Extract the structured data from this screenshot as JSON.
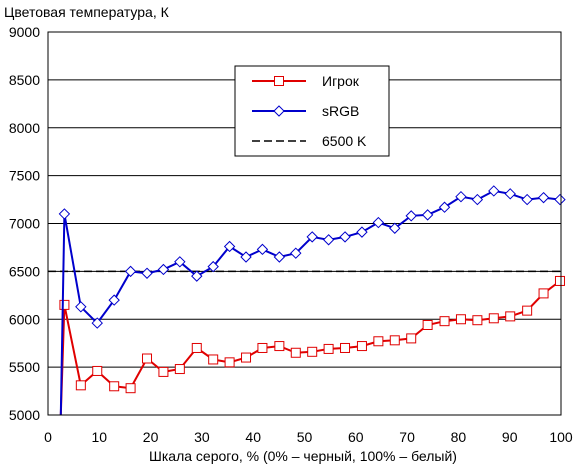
{
  "chart_data": {
    "type": "line",
    "title": "",
    "ylabel": "Цветовая температура, К",
    "xlabel": "Шкала серого, % (0% – черный, 100% – белый)",
    "xlim": [
      0,
      100
    ],
    "ylim": [
      5000,
      9000
    ],
    "xticks": [
      0,
      10,
      20,
      30,
      40,
      50,
      60,
      70,
      80,
      90,
      100
    ],
    "yticks": [
      5000,
      5500,
      6000,
      6500,
      7000,
      7500,
      8000,
      8500,
      9000
    ],
    "grid": "horizontal",
    "legend_position": "top-center",
    "series": [
      {
        "name": "Игрок",
        "color": "#e00000",
        "marker": "square",
        "points": [
          [
            2.5,
            5000
          ],
          [
            3.2,
            6150
          ],
          [
            6.4,
            5310
          ],
          [
            9.6,
            5460
          ],
          [
            12.9,
            5300
          ],
          [
            16.1,
            5280
          ],
          [
            19.3,
            5590
          ],
          [
            22.5,
            5450
          ],
          [
            25.7,
            5480
          ],
          [
            29,
            5700
          ],
          [
            32.2,
            5580
          ],
          [
            35.4,
            5550
          ],
          [
            38.6,
            5600
          ],
          [
            41.8,
            5700
          ],
          [
            45.1,
            5720
          ],
          [
            48.3,
            5650
          ],
          [
            51.5,
            5660
          ],
          [
            54.7,
            5690
          ],
          [
            57.9,
            5700
          ],
          [
            61.2,
            5720
          ],
          [
            64.4,
            5770
          ],
          [
            67.6,
            5780
          ],
          [
            70.8,
            5800
          ],
          [
            74,
            5940
          ],
          [
            77.3,
            5980
          ],
          [
            80.5,
            6000
          ],
          [
            83.7,
            5990
          ],
          [
            86.9,
            6010
          ],
          [
            90.1,
            6030
          ],
          [
            93.4,
            6090
          ],
          [
            96.6,
            6270
          ],
          [
            99.8,
            6400
          ]
        ]
      },
      {
        "name": "sRGB",
        "color": "#0000cc",
        "marker": "diamond",
        "points": [
          [
            2.5,
            5000
          ],
          [
            3.2,
            7100
          ],
          [
            6.4,
            6130
          ],
          [
            9.6,
            5960
          ],
          [
            12.9,
            6200
          ],
          [
            16.1,
            6500
          ],
          [
            19.3,
            6480
          ],
          [
            22.5,
            6520
          ],
          [
            25.7,
            6600
          ],
          [
            29,
            6450
          ],
          [
            32.2,
            6550
          ],
          [
            35.4,
            6760
          ],
          [
            38.6,
            6650
          ],
          [
            41.8,
            6730
          ],
          [
            45.1,
            6650
          ],
          [
            48.3,
            6690
          ],
          [
            51.5,
            6860
          ],
          [
            54.7,
            6830
          ],
          [
            57.9,
            6860
          ],
          [
            61.2,
            6910
          ],
          [
            64.4,
            7010
          ],
          [
            67.6,
            6950
          ],
          [
            70.8,
            7080
          ],
          [
            74,
            7090
          ],
          [
            77.3,
            7170
          ],
          [
            80.5,
            7280
          ],
          [
            83.7,
            7250
          ],
          [
            86.9,
            7340
          ],
          [
            90.1,
            7310
          ],
          [
            93.4,
            7250
          ],
          [
            96.6,
            7270
          ],
          [
            99.8,
            7250
          ]
        ]
      },
      {
        "name": "6500 K",
        "color": "#000000",
        "style": "dashed",
        "points": [
          [
            0,
            6500
          ],
          [
            100,
            6500
          ]
        ]
      }
    ]
  }
}
